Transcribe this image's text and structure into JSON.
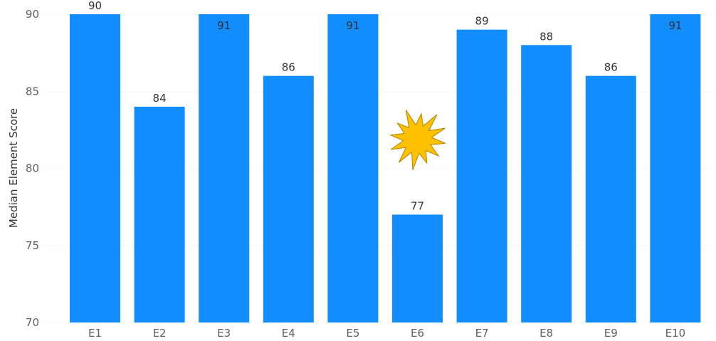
{
  "chart_data": {
    "type": "bar",
    "categories": [
      "E1",
      "E2",
      "E3",
      "E4",
      "E5",
      "E6",
      "E7",
      "E8",
      "E9",
      "E10"
    ],
    "values": [
      90,
      84,
      91,
      86,
      91,
      77,
      89,
      88,
      86,
      91
    ],
    "data_labels": [
      "90",
      "84",
      "91",
      "86",
      "91",
      "77",
      "89",
      "88",
      "86",
      "91"
    ],
    "xlabel": "",
    "ylabel": "Median Element Score",
    "ylim": [
      70,
      90
    ],
    "yticks": [
      "70",
      "75",
      "80",
      "85",
      "90"
    ],
    "grid": true,
    "colors": {
      "bar": "#118DFF",
      "star": "#FFC000",
      "star_outline": "#B38600"
    },
    "annotations": [
      {
        "type": "star-shape",
        "near_category": "E6",
        "value": 81.9
      }
    ]
  }
}
